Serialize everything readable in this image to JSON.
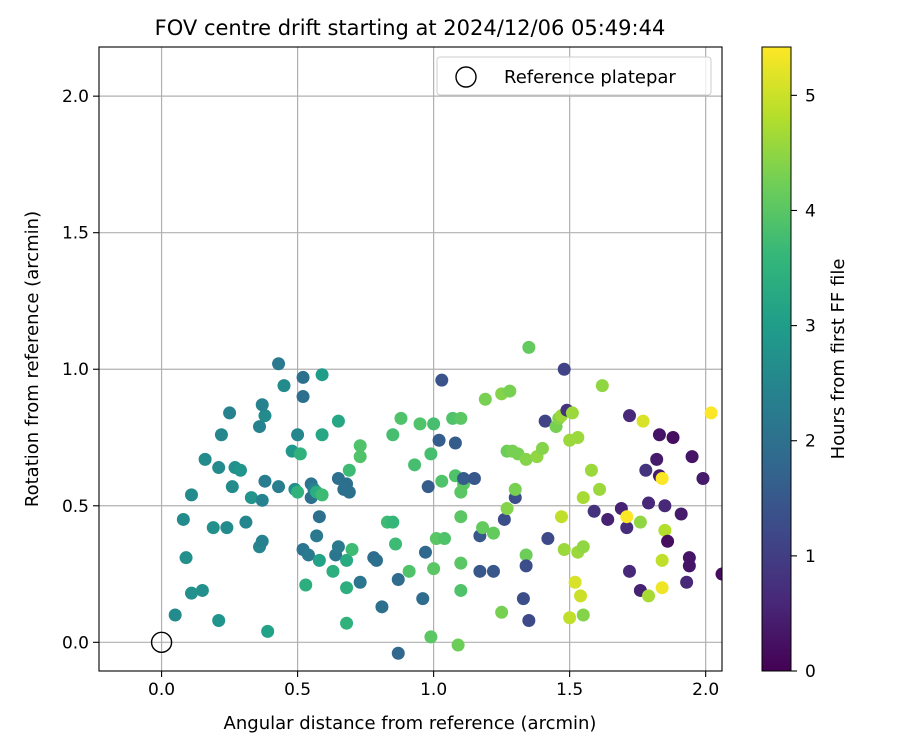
{
  "chart_data": {
    "type": "scatter",
    "title": "FOV centre drift starting at 2024/12/06 05:49:44",
    "xlabel": "Angular distance from reference (arcmin)",
    "ylabel": "Rotation from reference (arcmin)",
    "xlim": [
      -0.23,
      2.06
    ],
    "ylim": [
      -0.105,
      2.18
    ],
    "x_ticks": [
      "0.0",
      "0.5",
      "1.0",
      "1.5",
      "2.0"
    ],
    "y_ticks": [
      "0.0",
      "0.5",
      "1.0",
      "1.5",
      "2.0"
    ],
    "grid": true,
    "legend": {
      "placement": "top-right",
      "entries": [
        "Reference platepar"
      ]
    },
    "reference_point": {
      "name": "Reference platepar",
      "x": 0.0,
      "y": 0.0,
      "marker": "open-circle"
    },
    "colorbar": {
      "label": "Hours from first FF file",
      "min": 0,
      "max": 5.42,
      "ticks": [
        "0",
        "1",
        "2",
        "3",
        "4",
        "5"
      ],
      "colormap": "viridis"
    },
    "points": [
      {
        "x": 0.05,
        "y": 0.1,
        "c": 2.6
      },
      {
        "x": 0.08,
        "y": 0.45,
        "c": 2.6
      },
      {
        "x": 0.09,
        "y": 0.31,
        "c": 2.7
      },
      {
        "x": 0.11,
        "y": 0.18,
        "c": 2.7
      },
      {
        "x": 0.15,
        "y": 0.19,
        "c": 2.7
      },
      {
        "x": 0.11,
        "y": 0.54,
        "c": 2.6
      },
      {
        "x": 0.16,
        "y": 0.67,
        "c": 2.6
      },
      {
        "x": 0.21,
        "y": 0.08,
        "c": 2.8
      },
      {
        "x": 0.19,
        "y": 0.42,
        "c": 2.7
      },
      {
        "x": 0.22,
        "y": 0.76,
        "c": 2.5
      },
      {
        "x": 0.25,
        "y": 0.84,
        "c": 2.4
      },
      {
        "x": 0.24,
        "y": 0.42,
        "c": 2.6
      },
      {
        "x": 0.26,
        "y": 0.57,
        "c": 2.6
      },
      {
        "x": 0.27,
        "y": 0.64,
        "c": 2.7
      },
      {
        "x": 0.29,
        "y": 0.63,
        "c": 2.8
      },
      {
        "x": 0.31,
        "y": 0.44,
        "c": 2.5
      },
      {
        "x": 0.33,
        "y": 0.53,
        "c": 2.8
      },
      {
        "x": 0.21,
        "y": 0.64,
        "c": 2.6
      },
      {
        "x": 0.36,
        "y": 0.35,
        "c": 2.5
      },
      {
        "x": 0.37,
        "y": 0.37,
        "c": 2.4
      },
      {
        "x": 0.37,
        "y": 0.52,
        "c": 2.4
      },
      {
        "x": 0.36,
        "y": 0.79,
        "c": 2.4
      },
      {
        "x": 0.38,
        "y": 0.83,
        "c": 2.6
      },
      {
        "x": 0.37,
        "y": 0.87,
        "c": 2.4
      },
      {
        "x": 0.39,
        "y": 0.04,
        "c": 3.1
      },
      {
        "x": 0.38,
        "y": 0.59,
        "c": 2.3
      },
      {
        "x": 0.43,
        "y": 0.57,
        "c": 2.3
      },
      {
        "x": 0.43,
        "y": 1.02,
        "c": 2.2
      },
      {
        "x": 0.45,
        "y": 0.94,
        "c": 2.6
      },
      {
        "x": 0.48,
        "y": 0.7,
        "c": 2.9
      },
      {
        "x": 0.49,
        "y": 0.56,
        "c": 2.7
      },
      {
        "x": 0.5,
        "y": 0.55,
        "c": 3.5
      },
      {
        "x": 0.5,
        "y": 0.76,
        "c": 2.5
      },
      {
        "x": 0.52,
        "y": 0.34,
        "c": 2.1
      },
      {
        "x": 0.52,
        "y": 0.9,
        "c": 2.0
      },
      {
        "x": 0.52,
        "y": 0.97,
        "c": 2.0
      },
      {
        "x": 0.51,
        "y": 0.69,
        "c": 3.5
      },
      {
        "x": 0.53,
        "y": 0.21,
        "c": 3.4
      },
      {
        "x": 0.54,
        "y": 0.32,
        "c": 2.2
      },
      {
        "x": 0.55,
        "y": 0.58,
        "c": 2.1
      },
      {
        "x": 0.55,
        "y": 0.53,
        "c": 2.0
      },
      {
        "x": 0.56,
        "y": 0.56,
        "c": 2.4
      },
      {
        "x": 0.57,
        "y": 0.55,
        "c": 3.4
      },
      {
        "x": 0.57,
        "y": 0.39,
        "c": 2.2
      },
      {
        "x": 0.58,
        "y": 0.3,
        "c": 3.1
      },
      {
        "x": 0.58,
        "y": 0.46,
        "c": 2.0
      },
      {
        "x": 0.59,
        "y": 0.54,
        "c": 3.7
      },
      {
        "x": 0.59,
        "y": 0.76,
        "c": 3.2
      },
      {
        "x": 0.59,
        "y": 0.98,
        "c": 3.0
      },
      {
        "x": 0.63,
        "y": 0.26,
        "c": 3.4
      },
      {
        "x": 0.64,
        "y": 0.32,
        "c": 2.1
      },
      {
        "x": 0.65,
        "y": 0.81,
        "c": 3.2
      },
      {
        "x": 0.65,
        "y": 0.35,
        "c": 2.2
      },
      {
        "x": 0.65,
        "y": 0.6,
        "c": 2.0
      },
      {
        "x": 0.67,
        "y": 0.56,
        "c": 2.0
      },
      {
        "x": 0.68,
        "y": 0.07,
        "c": 3.5
      },
      {
        "x": 0.68,
        "y": 0.2,
        "c": 3.4
      },
      {
        "x": 0.68,
        "y": 0.3,
        "c": 3.3
      },
      {
        "x": 0.68,
        "y": 0.58,
        "c": 2.0
      },
      {
        "x": 0.69,
        "y": 0.55,
        "c": 2.0
      },
      {
        "x": 0.69,
        "y": 0.63,
        "c": 3.7
      },
      {
        "x": 0.7,
        "y": 0.34,
        "c": 3.7
      },
      {
        "x": 0.73,
        "y": 0.68,
        "c": 3.9
      },
      {
        "x": 0.73,
        "y": 0.72,
        "c": 3.9
      },
      {
        "x": 0.73,
        "y": 0.22,
        "c": 2.1
      },
      {
        "x": 0.78,
        "y": 0.31,
        "c": 1.9
      },
      {
        "x": 0.79,
        "y": 0.3,
        "c": 2.0
      },
      {
        "x": 0.81,
        "y": 0.13,
        "c": 2.0
      },
      {
        "x": 0.83,
        "y": 0.44,
        "c": 3.7
      },
      {
        "x": 0.85,
        "y": 0.76,
        "c": 3.8
      },
      {
        "x": 0.85,
        "y": 0.44,
        "c": 3.6
      },
      {
        "x": 0.86,
        "y": 0.36,
        "c": 3.7
      },
      {
        "x": 0.87,
        "y": 0.23,
        "c": 1.9
      },
      {
        "x": 0.87,
        "y": -0.04,
        "c": 1.8
      },
      {
        "x": 0.88,
        "y": 0.82,
        "c": 3.9
      },
      {
        "x": 0.91,
        "y": 0.26,
        "c": 3.9
      },
      {
        "x": 0.93,
        "y": 0.65,
        "c": 3.8
      },
      {
        "x": 0.95,
        "y": 0.8,
        "c": 3.9
      },
      {
        "x": 0.97,
        "y": 0.33,
        "c": 1.8
      },
      {
        "x": 0.96,
        "y": 0.16,
        "c": 1.9
      },
      {
        "x": 0.98,
        "y": 0.57,
        "c": 1.6
      },
      {
        "x": 0.99,
        "y": 0.69,
        "c": 3.8
      },
      {
        "x": 0.99,
        "y": 0.02,
        "c": 4.0
      },
      {
        "x": 1.0,
        "y": 0.8,
        "c": 3.8
      },
      {
        "x": 1.0,
        "y": 0.27,
        "c": 4.0
      },
      {
        "x": 1.01,
        "y": 0.38,
        "c": 4.0
      },
      {
        "x": 1.02,
        "y": 0.74,
        "c": 1.6
      },
      {
        "x": 1.03,
        "y": 0.96,
        "c": 1.4
      },
      {
        "x": 1.03,
        "y": 0.59,
        "c": 3.9
      },
      {
        "x": 1.04,
        "y": 0.38,
        "c": 3.9
      },
      {
        "x": 1.07,
        "y": 0.82,
        "c": 3.9
      },
      {
        "x": 1.08,
        "y": 0.73,
        "c": 1.6
      },
      {
        "x": 1.08,
        "y": 0.61,
        "c": 3.9
      },
      {
        "x": 1.09,
        "y": -0.01,
        "c": 4.2
      },
      {
        "x": 1.1,
        "y": 0.82,
        "c": 4.0
      },
      {
        "x": 1.1,
        "y": 0.19,
        "c": 3.9
      },
      {
        "x": 1.1,
        "y": 0.29,
        "c": 4.0
      },
      {
        "x": 1.1,
        "y": 0.46,
        "c": 4.0
      },
      {
        "x": 1.1,
        "y": 0.55,
        "c": 4.0
      },
      {
        "x": 1.11,
        "y": 0.58,
        "c": 4.0
      },
      {
        "x": 1.11,
        "y": 0.6,
        "c": 1.6
      },
      {
        "x": 1.15,
        "y": 0.6,
        "c": 1.5
      },
      {
        "x": 1.17,
        "y": 0.39,
        "c": 1.5
      },
      {
        "x": 1.17,
        "y": 0.26,
        "c": 1.5
      },
      {
        "x": 1.18,
        "y": 0.42,
        "c": 4.1
      },
      {
        "x": 1.19,
        "y": 0.89,
        "c": 4.3
      },
      {
        "x": 1.22,
        "y": 0.26,
        "c": 1.5
      },
      {
        "x": 1.22,
        "y": 0.4,
        "c": 4.1
      },
      {
        "x": 1.25,
        "y": 0.91,
        "c": 4.4
      },
      {
        "x": 1.25,
        "y": 0.11,
        "c": 4.3
      },
      {
        "x": 1.26,
        "y": 0.45,
        "c": 1.3
      },
      {
        "x": 1.27,
        "y": 0.49,
        "c": 4.4
      },
      {
        "x": 1.27,
        "y": 0.7,
        "c": 4.2
      },
      {
        "x": 1.28,
        "y": 0.92,
        "c": 4.3
      },
      {
        "x": 1.29,
        "y": 0.7,
        "c": 4.3
      },
      {
        "x": 1.3,
        "y": 0.53,
        "c": 1.3
      },
      {
        "x": 1.3,
        "y": 0.56,
        "c": 4.3
      },
      {
        "x": 1.31,
        "y": 0.69,
        "c": 4.3
      },
      {
        "x": 1.33,
        "y": 0.16,
        "c": 1.3
      },
      {
        "x": 1.34,
        "y": 0.32,
        "c": 4.2
      },
      {
        "x": 1.34,
        "y": 0.28,
        "c": 1.3
      },
      {
        "x": 1.34,
        "y": 0.67,
        "c": 4.4
      },
      {
        "x": 1.35,
        "y": 1.08,
        "c": 4.1
      },
      {
        "x": 1.35,
        "y": 0.08,
        "c": 1.2
      },
      {
        "x": 1.38,
        "y": 0.68,
        "c": 4.5
      },
      {
        "x": 1.4,
        "y": 0.71,
        "c": 4.4
      },
      {
        "x": 1.41,
        "y": 0.81,
        "c": 1.1
      },
      {
        "x": 1.42,
        "y": 0.38,
        "c": 1.2
      },
      {
        "x": 1.45,
        "y": 0.79,
        "c": 4.3
      },
      {
        "x": 1.46,
        "y": 0.82,
        "c": 4.4
      },
      {
        "x": 1.47,
        "y": 0.46,
        "c": 4.9
      },
      {
        "x": 1.47,
        "y": 0.83,
        "c": 4.6
      },
      {
        "x": 1.48,
        "y": 1.0,
        "c": 1.1
      },
      {
        "x": 1.48,
        "y": 0.34,
        "c": 4.6
      },
      {
        "x": 1.49,
        "y": 0.85,
        "c": 0.8
      },
      {
        "x": 1.5,
        "y": 0.09,
        "c": 4.9
      },
      {
        "x": 1.5,
        "y": 0.74,
        "c": 4.6
      },
      {
        "x": 1.51,
        "y": 0.84,
        "c": 4.6
      },
      {
        "x": 1.52,
        "y": 0.22,
        "c": 5.1
      },
      {
        "x": 1.53,
        "y": 0.33,
        "c": 4.6
      },
      {
        "x": 1.53,
        "y": 0.75,
        "c": 4.6
      },
      {
        "x": 1.54,
        "y": 0.17,
        "c": 5.0
      },
      {
        "x": 1.55,
        "y": 0.35,
        "c": 4.5
      },
      {
        "x": 1.55,
        "y": 0.53,
        "c": 4.7
      },
      {
        "x": 1.55,
        "y": 0.1,
        "c": 4.4
      },
      {
        "x": 1.58,
        "y": 0.63,
        "c": 4.6
      },
      {
        "x": 1.59,
        "y": 0.48,
        "c": 0.8
      },
      {
        "x": 1.61,
        "y": 0.56,
        "c": 4.6
      },
      {
        "x": 1.62,
        "y": 0.94,
        "c": 4.5
      },
      {
        "x": 1.64,
        "y": 0.45,
        "c": 0.5
      },
      {
        "x": 1.69,
        "y": 0.49,
        "c": 0.5
      },
      {
        "x": 1.71,
        "y": 0.42,
        "c": 0.7
      },
      {
        "x": 1.71,
        "y": 0.46,
        "c": 5.4
      },
      {
        "x": 1.72,
        "y": 0.26,
        "c": 0.6
      },
      {
        "x": 1.72,
        "y": 0.83,
        "c": 0.6
      },
      {
        "x": 1.76,
        "y": 0.44,
        "c": 4.5
      },
      {
        "x": 1.76,
        "y": 0.19,
        "c": 0.5
      },
      {
        "x": 1.77,
        "y": 0.81,
        "c": 5.1
      },
      {
        "x": 1.78,
        "y": 0.63,
        "c": 0.8
      },
      {
        "x": 1.79,
        "y": 0.51,
        "c": 0.6
      },
      {
        "x": 1.79,
        "y": 0.17,
        "c": 4.7
      },
      {
        "x": 1.82,
        "y": 0.67,
        "c": 0.4
      },
      {
        "x": 1.83,
        "y": 0.76,
        "c": 0.3
      },
      {
        "x": 1.83,
        "y": 0.61,
        "c": 0.4
      },
      {
        "x": 1.84,
        "y": 0.6,
        "c": 5.4
      },
      {
        "x": 1.84,
        "y": 0.3,
        "c": 4.9
      },
      {
        "x": 1.84,
        "y": 0.2,
        "c": 5.3
      },
      {
        "x": 1.85,
        "y": 0.5,
        "c": 0.6
      },
      {
        "x": 1.85,
        "y": 0.41,
        "c": 4.8
      },
      {
        "x": 1.86,
        "y": 0.37,
        "c": 0.2
      },
      {
        "x": 1.88,
        "y": 0.75,
        "c": 0.2
      },
      {
        "x": 1.91,
        "y": 0.47,
        "c": 0.4
      },
      {
        "x": 1.93,
        "y": 0.22,
        "c": 0.6
      },
      {
        "x": 1.94,
        "y": 0.31,
        "c": 0.3
      },
      {
        "x": 1.94,
        "y": 0.28,
        "c": 0.3
      },
      {
        "x": 1.95,
        "y": 0.68,
        "c": 0.3
      },
      {
        "x": 1.99,
        "y": 0.6,
        "c": 0.4
      },
      {
        "x": 2.02,
        "y": 0.84,
        "c": 5.4
      },
      {
        "x": 2.06,
        "y": 0.25,
        "c": 0.2
      }
    ]
  },
  "colors": {
    "grid": "#b0b0b0",
    "axis": "#000000",
    "viridis": [
      "#440154",
      "#482878",
      "#3e4989",
      "#31688e",
      "#26828e",
      "#1f9e89",
      "#35b779",
      "#6ece58",
      "#b5de2b",
      "#fde725"
    ]
  }
}
